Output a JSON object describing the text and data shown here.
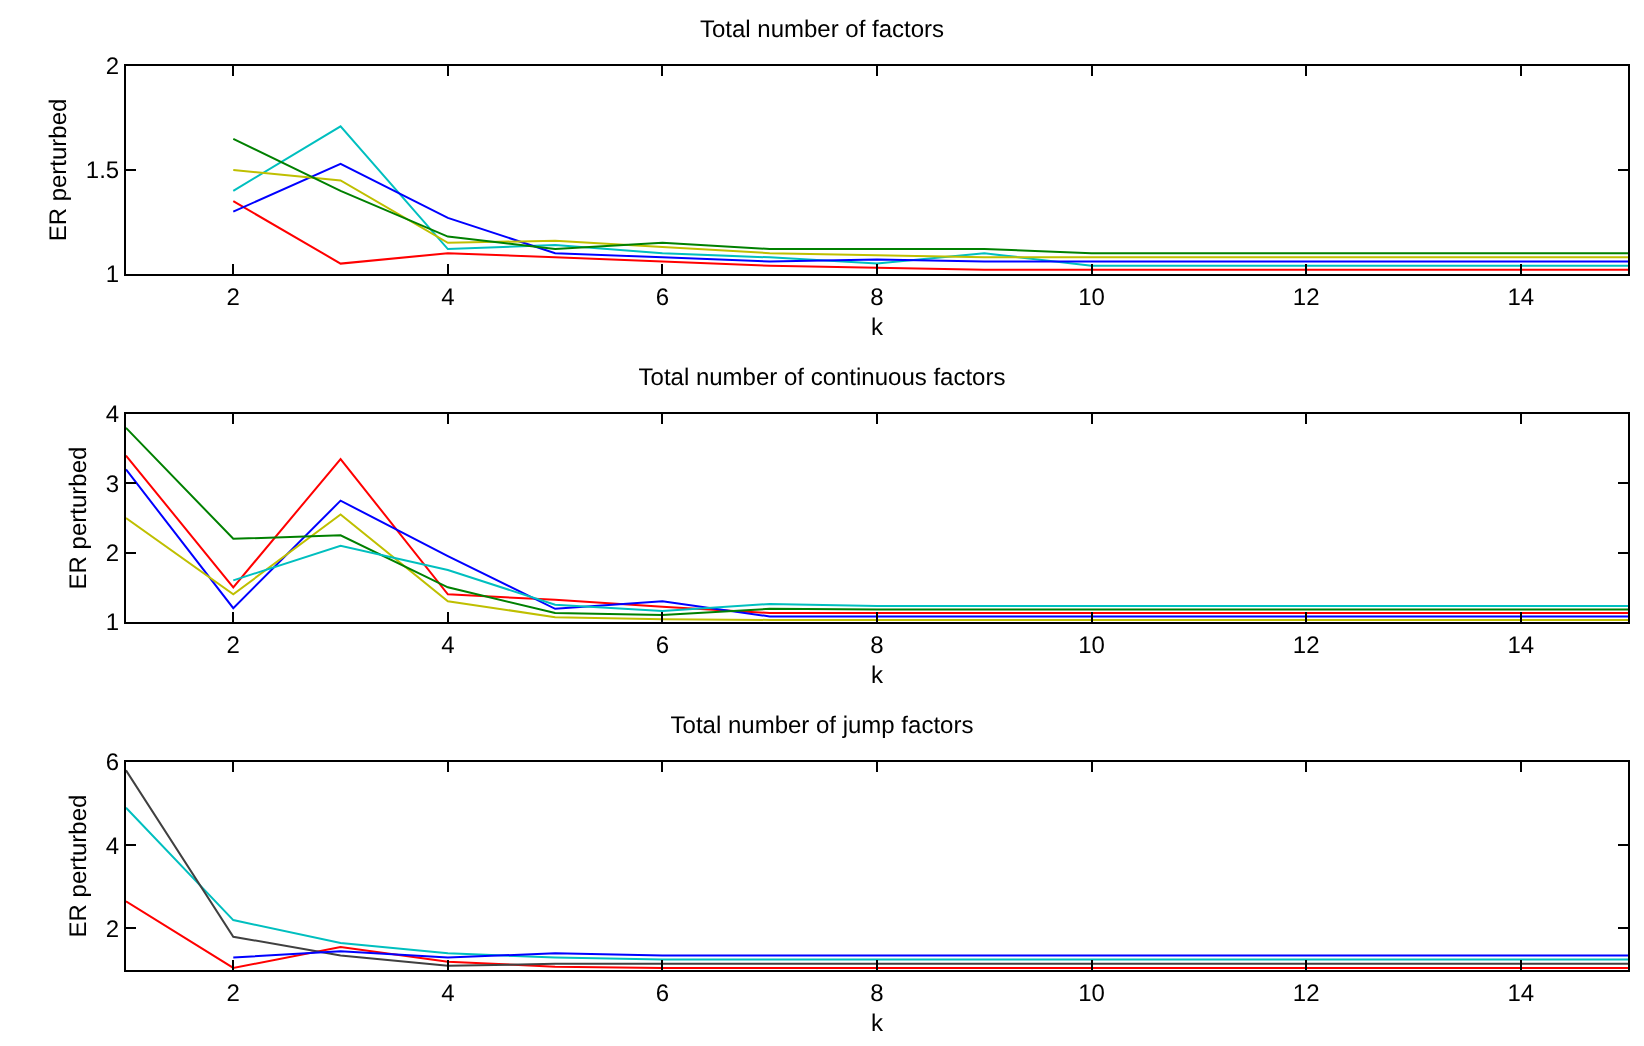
{
  "chart_data": [
    {
      "type": "line",
      "title": "Total number of factors",
      "xlabel": "k",
      "ylabel": "ER perturbed",
      "x": [
        2,
        3,
        4,
        5,
        6,
        7,
        8,
        9,
        10,
        11,
        12,
        13,
        14,
        15
      ],
      "xlim": [
        1,
        15
      ],
      "xticks": [
        2,
        4,
        6,
        8,
        10,
        12,
        14
      ],
      "ylim": [
        1,
        2
      ],
      "yticks": [
        1,
        1.5,
        2
      ],
      "grid": false,
      "marker": "none",
      "line_style": "solid",
      "series": [
        {
          "color": "#ff0000",
          "values": [
            1.35,
            1.05,
            1.1,
            1.08,
            1.06,
            1.04,
            1.03,
            1.02,
            1.02,
            1.02,
            1.02,
            1.02,
            1.02,
            1.02
          ]
        },
        {
          "color": "#00bfbf",
          "values": [
            1.4,
            1.71,
            1.12,
            1.14,
            1.1,
            1.08,
            1.05,
            1.1,
            1.04,
            1.04,
            1.04,
            1.04,
            1.04,
            1.04
          ]
        },
        {
          "color": "#0000ff",
          "values": [
            1.3,
            1.53,
            1.27,
            1.1,
            1.08,
            1.06,
            1.07,
            1.06,
            1.06,
            1.06,
            1.06,
            1.06,
            1.06,
            1.06
          ]
        },
        {
          "color": "#bfbf00",
          "values": [
            1.5,
            1.45,
            1.15,
            1.16,
            1.13,
            1.1,
            1.09,
            1.08,
            1.08,
            1.08,
            1.08,
            1.08,
            1.08,
            1.08
          ]
        },
        {
          "color": "#008000",
          "values": [
            1.65,
            1.4,
            1.18,
            1.12,
            1.15,
            1.12,
            1.12,
            1.12,
            1.1,
            1.1,
            1.1,
            1.1,
            1.1,
            1.1
          ]
        }
      ]
    },
    {
      "type": "line",
      "title": "Total number of continuous factors",
      "xlabel": "k",
      "ylabel": "ER perturbed",
      "x": [
        1,
        2,
        3,
        4,
        5,
        6,
        7,
        8,
        9,
        10,
        11,
        12,
        13,
        14,
        15
      ],
      "xlim": [
        1,
        15
      ],
      "xticks": [
        2,
        4,
        6,
        8,
        10,
        12,
        14
      ],
      "ylim": [
        1,
        4
      ],
      "yticks": [
        1,
        2,
        3,
        4
      ],
      "grid": false,
      "marker": "none",
      "line_style": "solid",
      "series": [
        {
          "color": "#ff0000",
          "values": [
            3.4,
            1.5,
            3.35,
            1.4,
            1.32,
            1.22,
            1.13,
            1.13,
            1.13,
            1.13,
            1.13,
            1.13,
            1.13,
            1.13,
            1.13
          ]
        },
        {
          "color": "#0000ff",
          "values": [
            3.2,
            1.2,
            2.75,
            1.95,
            1.19,
            1.3,
            1.08,
            1.08,
            1.08,
            1.08,
            1.08,
            1.08,
            1.08,
            1.08,
            1.08
          ]
        },
        {
          "color": "#bfbf00",
          "values": [
            2.5,
            1.4,
            2.55,
            1.3,
            1.07,
            1.04,
            1.03,
            1.03,
            1.03,
            1.03,
            1.03,
            1.03,
            1.03,
            1.03,
            1.03
          ]
        },
        {
          "color": "#008000",
          "values": [
            3.8,
            2.2,
            2.25,
            1.5,
            1.13,
            1.1,
            1.19,
            1.18,
            1.18,
            1.18,
            1.18,
            1.18,
            1.18,
            1.18,
            1.18
          ]
        },
        {
          "color": "#00bfbf",
          "values": [
            null,
            1.6,
            2.1,
            1.75,
            1.25,
            1.16,
            1.26,
            1.23,
            1.23,
            1.23,
            1.23,
            1.23,
            1.23,
            1.23,
            1.23
          ]
        }
      ]
    },
    {
      "type": "line",
      "title": "Total number of jump factors",
      "xlabel": "k",
      "ylabel": "ER perturbed",
      "x": [
        1,
        2,
        3,
        4,
        5,
        6,
        7,
        8,
        9,
        10,
        11,
        12,
        13,
        14,
        15
      ],
      "xlim": [
        1,
        15
      ],
      "xticks": [
        2,
        4,
        6,
        8,
        10,
        12,
        14
      ],
      "ylim": [
        1,
        6
      ],
      "yticks": [
        2,
        4,
        6
      ],
      "grid": false,
      "marker": "none",
      "line_style": "solid",
      "series": [
        {
          "color": "#ff0000",
          "values": [
            2.65,
            1.05,
            1.55,
            1.2,
            1.08,
            1.05,
            1.05,
            1.05,
            1.05,
            1.05,
            1.05,
            1.05,
            1.05,
            1.05,
            1.05
          ]
        },
        {
          "color": "#00bfbf",
          "values": [
            4.9,
            2.2,
            1.65,
            1.4,
            1.3,
            1.25,
            1.25,
            1.25,
            1.25,
            1.25,
            1.25,
            1.25,
            1.25,
            1.25,
            1.25
          ]
        },
        {
          "color": "#404040",
          "values": [
            5.8,
            1.8,
            1.35,
            1.1,
            1.15,
            1.15,
            1.15,
            1.15,
            1.15,
            1.15,
            1.15,
            1.15,
            1.15,
            1.15,
            1.15
          ]
        },
        {
          "color": "#0000ff",
          "values": [
            null,
            1.3,
            1.45,
            1.3,
            1.4,
            1.35,
            1.35,
            1.35,
            1.35,
            1.35,
            1.35,
            1.35,
            1.35,
            1.35,
            1.35
          ]
        }
      ]
    }
  ]
}
